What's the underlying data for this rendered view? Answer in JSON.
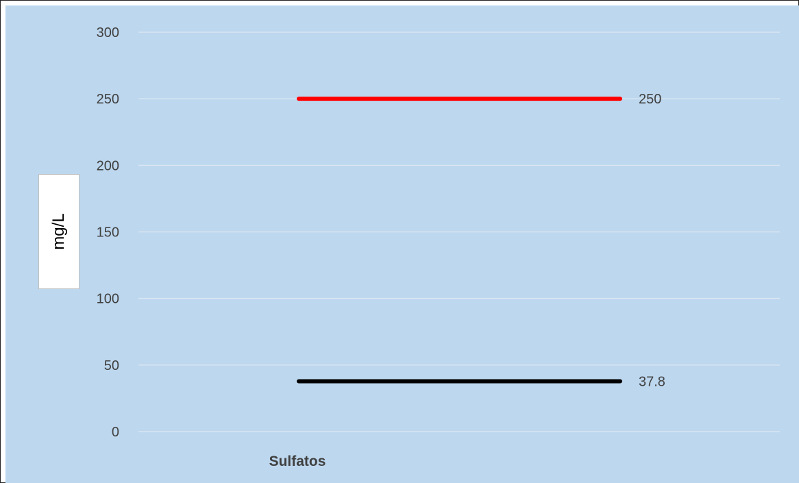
{
  "chart_data": {
    "type": "line",
    "categories": [
      "Sulfatos"
    ],
    "series": [
      {
        "values": [
          250
        ],
        "color": "#ff0000"
      },
      {
        "values": [
          37.8
        ],
        "color": "#000000"
      }
    ],
    "data_labels": [
      "250",
      "37.8"
    ],
    "ylabel": "mg/L",
    "ylim": [
      0,
      300
    ],
    "yticks": [
      "0",
      "50",
      "100",
      "150",
      "200",
      "250",
      "300"
    ],
    "grid": true,
    "background": "#bdd7ee"
  }
}
